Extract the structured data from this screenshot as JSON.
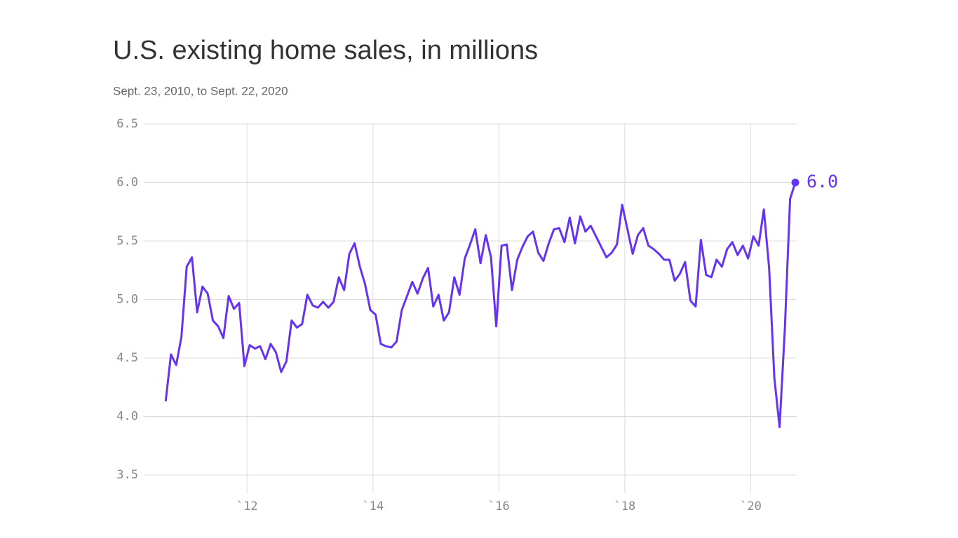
{
  "chart_data": {
    "type": "line",
    "title": "U.S. existing home sales, in millions",
    "subtitle": "Sept. 23, 2010, to Sept. 22, 2020",
    "x": [
      2010.708,
      2010.792,
      2010.875,
      2010.958,
      2011.042,
      2011.125,
      2011.208,
      2011.292,
      2011.375,
      2011.458,
      2011.542,
      2011.625,
      2011.708,
      2011.792,
      2011.875,
      2011.958,
      2012.042,
      2012.125,
      2012.208,
      2012.292,
      2012.375,
      2012.458,
      2012.542,
      2012.625,
      2012.708,
      2012.792,
      2012.875,
      2012.958,
      2013.042,
      2013.125,
      2013.208,
      2013.292,
      2013.375,
      2013.458,
      2013.542,
      2013.625,
      2013.708,
      2013.792,
      2013.875,
      2013.958,
      2014.042,
      2014.125,
      2014.208,
      2014.292,
      2014.375,
      2014.458,
      2014.542,
      2014.625,
      2014.708,
      2014.792,
      2014.875,
      2014.958,
      2015.042,
      2015.125,
      2015.208,
      2015.292,
      2015.375,
      2015.458,
      2015.542,
      2015.625,
      2015.708,
      2015.792,
      2015.875,
      2015.958,
      2016.042,
      2016.125,
      2016.208,
      2016.292,
      2016.375,
      2016.458,
      2016.542,
      2016.625,
      2016.708,
      2016.792,
      2016.875,
      2016.958,
      2017.042,
      2017.125,
      2017.208,
      2017.292,
      2017.375,
      2017.458,
      2017.542,
      2017.625,
      2017.708,
      2017.792,
      2017.875,
      2017.958,
      2018.042,
      2018.125,
      2018.208,
      2018.292,
      2018.375,
      2018.458,
      2018.542,
      2018.625,
      2018.708,
      2018.792,
      2018.875,
      2018.958,
      2019.042,
      2019.125,
      2019.208,
      2019.292,
      2019.375,
      2019.458,
      2019.542,
      2019.625,
      2019.708,
      2019.792,
      2019.875,
      2019.958,
      2020.042,
      2020.125,
      2020.208,
      2020.292,
      2020.375,
      2020.458,
      2020.542,
      2020.625,
      2020.708
    ],
    "series": [
      {
        "name": "Existing home sales",
        "color": "#6633f2",
        "values": [
          4.13,
          4.53,
          4.44,
          4.68,
          5.28,
          5.36,
          4.89,
          5.11,
          5.05,
          4.82,
          4.77,
          4.67,
          5.03,
          4.92,
          4.97,
          4.43,
          4.61,
          4.58,
          4.6,
          4.49,
          4.62,
          4.55,
          4.38,
          4.47,
          4.82,
          4.76,
          4.79,
          5.04,
          4.95,
          4.93,
          4.98,
          4.93,
          4.98,
          5.19,
          5.08,
          5.39,
          5.48,
          5.28,
          5.13,
          4.91,
          4.87,
          4.62,
          4.6,
          4.59,
          4.64,
          4.91,
          5.03,
          5.15,
          5.05,
          5.18,
          5.27,
          4.94,
          5.04,
          4.82,
          4.89,
          5.19,
          5.04,
          5.35,
          5.47,
          5.6,
          5.31,
          5.55,
          5.36,
          4.77,
          5.46,
          5.47,
          5.08,
          5.34,
          5.45,
          5.54,
          5.58,
          5.4,
          5.33,
          5.48,
          5.6,
          5.61,
          5.49,
          5.7,
          5.48,
          5.71,
          5.58,
          5.63,
          5.54,
          5.45,
          5.36,
          5.4,
          5.47,
          5.81,
          5.6,
          5.39,
          5.55,
          5.61,
          5.46,
          5.43,
          5.39,
          5.34,
          5.34,
          5.16,
          5.22,
          5.32,
          4.99,
          4.94,
          5.51,
          5.21,
          5.19,
          5.34,
          5.28,
          5.43,
          5.49,
          5.38,
          5.46,
          5.35,
          5.54,
          5.46,
          5.77,
          5.27,
          4.33,
          3.91,
          4.75,
          5.86,
          6.0
        ],
        "value_labels": [
          null,
          null,
          null,
          null,
          null,
          null,
          null,
          null,
          null,
          null,
          null,
          null,
          null,
          null,
          null,
          null,
          null,
          null,
          null,
          null,
          null,
          null,
          null,
          null,
          null,
          null,
          null,
          null,
          null,
          null,
          null,
          null,
          null,
          null,
          null,
          null,
          null,
          null,
          null,
          null,
          null,
          null,
          null,
          null,
          null,
          null,
          null,
          null,
          null,
          null,
          null,
          null,
          null,
          null,
          null,
          null,
          null,
          null,
          null,
          null,
          null,
          null,
          null,
          null,
          null,
          null,
          null,
          null,
          null,
          null,
          null,
          null,
          null,
          null,
          null,
          null,
          null,
          null,
          null,
          null,
          null,
          null,
          null,
          null,
          null,
          null,
          null,
          null,
          null,
          null,
          null,
          null,
          null,
          null,
          null,
          null,
          null,
          null,
          null,
          null,
          null,
          null,
          null,
          null,
          null,
          null,
          null,
          null,
          null,
          null,
          null,
          null,
          null,
          null,
          null,
          null,
          null,
          null,
          null,
          null,
          "6.0"
        ]
      }
    ],
    "xlim": [
      2010.36,
      2020.73
    ],
    "xticks": [
      {
        "value": 2012,
        "label": "`12"
      },
      {
        "value": 2014,
        "label": "`14"
      },
      {
        "value": 2016,
        "label": "`16"
      },
      {
        "value": 2018,
        "label": "`18"
      },
      {
        "value": 2020,
        "label": "`20"
      }
    ],
    "ylim": [
      3.5,
      6.5
    ],
    "yticks": [
      3.5,
      {
        "value": 4,
        "label": "4.0"
      },
      4.5,
      {
        "value": 5,
        "label": "5.0"
      },
      5.5,
      {
        "value": 6,
        "label": "6.0"
      },
      6.5
    ],
    "grid": true
  }
}
